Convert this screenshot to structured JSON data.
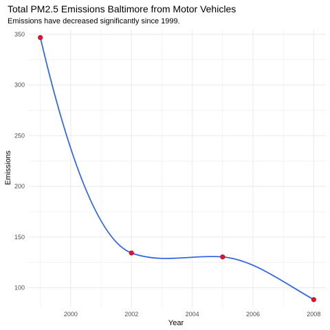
{
  "chart_data": {
    "type": "line",
    "title": "Total PM2.5 Emissions Baltimore from Motor Vehicles",
    "subtitle": "Emissions have decreased significantly since 1999.",
    "xlabel": "Year",
    "ylabel": "Emissions",
    "x_ticks": [
      2000,
      2002,
      2004,
      2006,
      2008
    ],
    "y_ticks": [
      100,
      150,
      200,
      250,
      300,
      350
    ],
    "xlim": [
      1998.6,
      2008.4
    ],
    "ylim": [
      80.7,
      354.7
    ],
    "grid": true,
    "legend": "none",
    "series": [
      {
        "x": [
          1999,
          2002,
          2005,
          2008
        ],
        "values": [
          346.8,
          134.3,
          130.4,
          88.3
        ]
      }
    ],
    "colors": {
      "line": "#3366e6",
      "points": "#e8112d",
      "point_stroke": "#b01030",
      "grid": "#ebebeb"
    }
  }
}
